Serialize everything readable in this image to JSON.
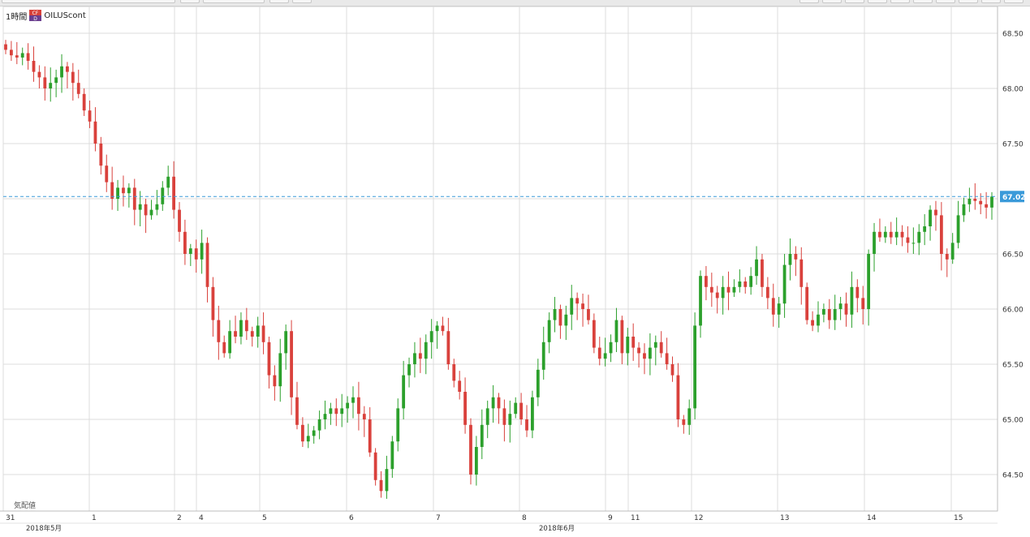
{
  "header": {
    "timeframe": "1時間",
    "symbol": "OILUScont",
    "icon": "cfd-icon"
  },
  "footer": {
    "delay_label": "気配値"
  },
  "colors": {
    "up": "#2ca02c",
    "down": "#d9413c",
    "grid": "#dcdcdc",
    "last_price": "#3a9ad9"
  },
  "chart_data": {
    "type": "candlestick",
    "y_ticks": [
      "68.50",
      "68.00",
      "67.50",
      "67.00",
      "66.50",
      "66.00",
      "65.50",
      "65.00",
      "64.50"
    ],
    "ylim": [
      64.2,
      68.75
    ],
    "last_price": "67.02",
    "x_day_labels": [
      "31",
      "1",
      "2",
      "4",
      "5",
      "6",
      "7",
      "8",
      "9",
      "11",
      "12",
      "13",
      "14",
      "15"
    ],
    "month_labels": [
      "2018年5月",
      "2018年6月"
    ],
    "close_series": [
      68.35,
      68.3,
      68.28,
      68.32,
      68.25,
      68.15,
      68.1,
      68.0,
      68.05,
      68.1,
      68.2,
      68.15,
      68.05,
      67.95,
      67.8,
      67.7,
      67.5,
      67.3,
      67.15,
      67.0,
      67.1,
      67.05,
      67.1,
      66.9,
      66.95,
      66.85,
      66.9,
      66.95,
      67.1,
      67.2,
      66.9,
      66.7,
      66.5,
      66.55,
      66.45,
      66.6,
      66.2,
      65.9,
      65.7,
      65.6,
      65.8,
      65.75,
      65.9,
      65.8,
      65.75,
      65.85,
      65.7,
      65.4,
      65.3,
      65.6,
      65.8,
      65.2,
      64.95,
      64.8,
      64.85,
      64.9,
      65.0,
      65.05,
      65.1,
      65.05,
      65.1,
      65.15,
      65.2,
      65.05,
      65.0,
      64.7,
      64.45,
      64.35,
      64.55,
      64.8,
      65.1,
      65.4,
      65.5,
      65.6,
      65.55,
      65.7,
      65.8,
      65.85,
      65.8,
      65.5,
      65.35,
      65.25,
      64.95,
      64.5,
      64.75,
      64.95,
      65.1,
      65.2,
      65.1,
      64.95,
      65.05,
      65.15,
      65.0,
      64.9,
      65.2,
      65.45,
      65.7,
      65.9,
      66.0,
      65.85,
      65.95,
      66.1,
      66.05,
      66.0,
      65.9,
      65.65,
      65.55,
      65.6,
      65.7,
      65.9,
      65.6,
      65.75,
      65.65,
      65.6,
      65.55,
      65.65,
      65.7,
      65.6,
      65.5,
      65.4,
      65.0,
      64.95,
      65.1,
      65.85,
      66.3,
      66.2,
      66.15,
      66.1,
      66.2,
      66.15,
      66.2,
      66.25,
      66.2,
      66.3,
      66.45,
      66.2,
      66.1,
      65.95,
      66.05,
      66.4,
      66.5,
      66.45,
      66.2,
      65.9,
      65.85,
      65.95,
      66.0,
      65.9,
      66.0,
      66.05,
      65.95,
      66.2,
      66.1,
      66.0,
      66.5,
      66.7,
      66.65,
      66.7,
      66.65,
      66.7,
      66.65,
      66.6,
      66.6,
      66.7,
      66.75,
      66.9,
      66.85,
      66.5,
      66.45,
      66.6,
      66.85,
      66.95,
      67.0,
      66.98,
      66.95,
      66.92,
      67.02
    ]
  }
}
